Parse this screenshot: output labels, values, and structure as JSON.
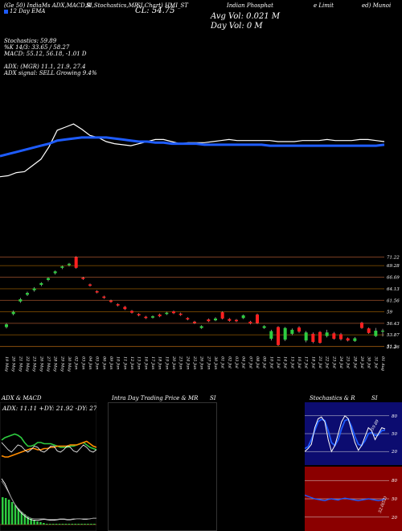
{
  "header": {
    "line1": [
      "(Ge 50) IndiaMs ADX,MACD,B",
      "SI,Stochastics,MR",
      "SI Chart) HMI_ST",
      "Indian Phosphat",
      "e Limit",
      "ed) Munoi"
    ],
    "ema_line": "12  Day  EMA",
    "cl_label": "CL: 54.75",
    "avg_vol": "Avg Vol: 0.021 M",
    "day_vol": "Day Vol: 0   M",
    "stochastics": "Stochastics: 59.89",
    "stochastics2": "%K 14/3: 33.65 / 58.27",
    "macd": "MACD: 55.12, 56.18, -1.01 D",
    "adx": "ADX:                    (MGR) 11.1, 21.9, 27.4",
    "adx_signal": "ADX  signal: SELL Growing 9.4%"
  },
  "chart_data": [
    {
      "type": "line",
      "name": "moving-averages",
      "series": [
        {
          "name": "price",
          "color": "#ffffff",
          "values": [
            62,
            61,
            58,
            57,
            51,
            45,
            33,
            17,
            14,
            11,
            16,
            22,
            24,
            28,
            30,
            31,
            32,
            30,
            28,
            26,
            26,
            28,
            30,
            29,
            29,
            29,
            28,
            27,
            26,
            27,
            27,
            27,
            27,
            27,
            28,
            28,
            28,
            27,
            27,
            27,
            26,
            27,
            27,
            27,
            26,
            26,
            27,
            28
          ]
        },
        {
          "name": "ema",
          "color": "#1e5cff",
          "values": [
            42,
            40,
            38,
            36,
            34,
            32,
            30,
            27,
            26,
            25,
            24,
            24,
            24,
            24,
            25,
            26,
            27,
            28,
            28,
            29,
            29,
            30,
            30,
            30,
            30,
            31,
            31,
            31,
            31,
            31,
            31,
            31,
            31,
            32,
            32,
            32,
            32,
            32,
            32,
            32,
            32,
            32,
            32,
            32,
            32,
            32,
            32,
            31
          ]
        }
      ]
    },
    {
      "type": "candlestick",
      "name": "price-candles",
      "y_ticks": [
        "71.22",
        "69.28",
        "66.69",
        "64.13",
        "61.56",
        "59",
        "56.43",
        "53.87",
        "51.3",
        "51.26"
      ],
      "y_tick_values": [
        71.22,
        69.28,
        66.69,
        64.13,
        61.56,
        59,
        56.43,
        53.87,
        51.3,
        51.26
      ],
      "ylim": [
        50.5,
        72
      ],
      "x_labels": [
        "19 May",
        "20 May",
        "21 May",
        "22 May",
        "23 May",
        "26 May",
        "27 May",
        "28 May",
        "29 May",
        "30 May",
        "02 Jun",
        "03 Jun",
        "04 Jun",
        "05 Jun",
        "06 Jun",
        "09 Jun",
        "10 Jun",
        "11 Jun",
        "12 Jun",
        "13 Jun",
        "16 Jun",
        "17 Jun",
        "18 Jun",
        "19 Jun",
        "20 Jun",
        "23 Jun",
        "24 Jun",
        "25 Jun",
        "26 Jun",
        "27 Jun",
        "30 Jun",
        "01 Jul",
        "02 Jul",
        "03 Jul",
        "04 Jul",
        "07 Jul",
        "08 Jul",
        "09 Jul",
        "10 Jul",
        "11 Jul",
        "14 Jul",
        "15 Jul",
        "16 Jul",
        "17 Jul",
        "18 Jul",
        "21 Jul",
        "22 Jul",
        "23 Jul",
        "24 Jul",
        "25 Jul",
        "28 Jul",
        "29 Jul",
        "30 Jul",
        "31 Jul",
        "01 Aug"
      ],
      "candles": [
        {
          "o": 55.6,
          "c": 56.2,
          "h": 56.5,
          "l": 55.3
        },
        {
          "o": 58.5,
          "c": 59.0,
          "h": 59.3,
          "l": 58.2
        },
        {
          "o": 61.3,
          "c": 61.8,
          "h": 62.1,
          "l": 61.0
        },
        {
          "o": 62.8,
          "c": 63.2,
          "h": 63.5,
          "l": 62.5
        },
        {
          "o": 63.8,
          "c": 64.2,
          "h": 64.5,
          "l": 63.5
        },
        {
          "o": 65.0,
          "c": 65.4,
          "h": 65.6,
          "l": 64.7
        },
        {
          "o": 66.1,
          "c": 66.5,
          "h": 66.7,
          "l": 65.8
        },
        {
          "o": 67.6,
          "c": 68.0,
          "h": 68.2,
          "l": 67.3
        },
        {
          "o": 68.8,
          "c": 69.1,
          "h": 69.3,
          "l": 68.5
        },
        {
          "o": 69.4,
          "c": 69.7,
          "h": 69.9,
          "l": 69.1
        },
        {
          "o": 71.2,
          "c": 68.8,
          "h": 71.4,
          "l": 68.6
        },
        {
          "o": 66.6,
          "c": 66.3,
          "h": 66.8,
          "l": 66.1
        },
        {
          "o": 65.1,
          "c": 64.8,
          "h": 65.3,
          "l": 64.6
        },
        {
          "o": 63.6,
          "c": 63.3,
          "h": 63.8,
          "l": 63.1
        },
        {
          "o": 62.4,
          "c": 62.1,
          "h": 62.6,
          "l": 61.9
        },
        {
          "o": 61.5,
          "c": 61.2,
          "h": 61.7,
          "l": 61.0
        },
        {
          "o": 60.7,
          "c": 60.4,
          "h": 60.9,
          "l": 60.2
        },
        {
          "o": 60.1,
          "c": 59.6,
          "h": 60.3,
          "l": 59.4
        },
        {
          "o": 59.2,
          "c": 58.8,
          "h": 59.4,
          "l": 58.6
        },
        {
          "o": 58.5,
          "c": 58.2,
          "h": 58.7,
          "l": 58.0
        },
        {
          "o": 57.9,
          "c": 57.6,
          "h": 58.1,
          "l": 57.4
        },
        {
          "o": 57.7,
          "c": 58.0,
          "h": 58.2,
          "l": 57.5
        },
        {
          "o": 58.4,
          "c": 58.0,
          "h": 58.6,
          "l": 57.8
        },
        {
          "o": 58.5,
          "c": 58.8,
          "h": 59.0,
          "l": 58.3
        },
        {
          "o": 59.1,
          "c": 58.7,
          "h": 59.3,
          "l": 58.5
        },
        {
          "o": 58.6,
          "c": 58.3,
          "h": 58.8,
          "l": 58.1
        },
        {
          "o": 57.6,
          "c": 57.3,
          "h": 57.8,
          "l": 57.1
        },
        {
          "o": 56.8,
          "c": 56.5,
          "h": 57.0,
          "l": 56.3
        },
        {
          "o": 55.4,
          "c": 55.8,
          "h": 56.0,
          "l": 55.2
        },
        {
          "o": 57.3,
          "c": 56.9,
          "h": 57.5,
          "l": 56.7
        },
        {
          "o": 57.1,
          "c": 57.5,
          "h": 57.8,
          "l": 56.9
        },
        {
          "o": 58.9,
          "c": 57.5,
          "h": 59.1,
          "l": 57.3
        },
        {
          "o": 57.4,
          "c": 57.0,
          "h": 57.6,
          "l": 56.8
        },
        {
          "o": 57.2,
          "c": 56.9,
          "h": 57.4,
          "l": 56.7
        },
        {
          "o": 57.6,
          "c": 58.2,
          "h": 58.4,
          "l": 57.4
        },
        {
          "o": 56.8,
          "c": 56.4,
          "h": 57.0,
          "l": 56.2
        },
        {
          "o": 58.4,
          "c": 56.5,
          "h": 58.6,
          "l": 56.3
        },
        {
          "o": 55.4,
          "c": 55.8,
          "h": 56.0,
          "l": 55.2
        },
        {
          "o": 53.0,
          "c": 54.7,
          "h": 55.0,
          "l": 52.6
        },
        {
          "o": 55.6,
          "c": 51.6,
          "h": 55.8,
          "l": 51.4
        },
        {
          "o": 52.8,
          "c": 55.4,
          "h": 55.6,
          "l": 52.5
        },
        {
          "o": 54.1,
          "c": 55.0,
          "h": 55.3,
          "l": 53.8
        },
        {
          "o": 55.5,
          "c": 54.6,
          "h": 55.8,
          "l": 54.3
        },
        {
          "o": 52.6,
          "c": 54.4,
          "h": 54.7,
          "l": 52.2
        },
        {
          "o": 54.1,
          "c": 52.3,
          "h": 54.4,
          "l": 52.0
        },
        {
          "o": 54.5,
          "c": 52.1,
          "h": 54.7,
          "l": 51.9
        },
        {
          "o": 53.6,
          "c": 54.4,
          "h": 55.0,
          "l": 53.3
        },
        {
          "o": 54.2,
          "c": 53.0,
          "h": 54.5,
          "l": 52.8
        },
        {
          "o": 54.0,
          "c": 52.9,
          "h": 54.3,
          "l": 52.6
        },
        {
          "o": 53.1,
          "c": 52.6,
          "h": 53.3,
          "l": 52.4
        },
        {
          "o": 52.5,
          "c": 53.1,
          "h": 53.4,
          "l": 52.3
        },
        {
          "o": 56.6,
          "c": 55.4,
          "h": 56.8,
          "l": 55.2
        },
        {
          "o": 55.3,
          "c": 54.3,
          "h": 55.5,
          "l": 54.1
        },
        {
          "o": 53.6,
          "c": 54.8,
          "h": 55.4,
          "l": 53.4
        },
        {
          "o": 54.6,
          "c": 54.8,
          "h": 55.2,
          "l": 53.5
        }
      ],
      "up_color": "#2ecc40",
      "down_color": "#ff2020"
    },
    {
      "type": "line",
      "name": "adx-macd-panel",
      "title": "ADX  & MACD",
      "adx_text": "ADX: 11.11  +DY: 21.92  -DY: 27.4",
      "series": [
        {
          "name": "plus-dy",
          "color": "#2ecc40",
          "values": [
            32,
            34,
            35,
            36,
            37,
            36,
            34,
            30,
            27,
            27,
            28,
            30,
            30,
            29,
            29,
            29,
            28,
            27,
            26,
            26,
            26,
            27,
            27,
            28,
            29,
            30,
            28,
            26,
            25,
            24
          ]
        },
        {
          "name": "minus-dy",
          "color": "#ff8c00",
          "values": [
            19,
            18,
            18,
            19,
            20,
            21,
            22,
            23,
            24,
            25,
            25,
            24,
            24,
            25,
            25,
            26,
            26,
            27,
            27,
            27,
            27,
            28,
            28,
            28,
            29,
            30,
            31,
            29,
            27,
            26
          ]
        },
        {
          "name": "adx",
          "color": "#ffffff",
          "values": [
            30,
            27,
            24,
            22,
            25,
            28,
            27,
            24,
            22,
            24,
            27,
            26,
            23,
            22,
            24,
            27,
            27,
            23,
            22,
            24,
            27,
            26,
            23,
            22,
            25,
            28,
            26,
            23,
            22,
            24
          ]
        }
      ],
      "macd_hist": [
        34,
        33,
        31,
        28,
        24,
        20,
        16,
        13,
        10,
        8,
        6,
        4,
        3,
        2,
        1,
        1,
        1,
        1,
        1,
        1,
        1,
        1,
        1,
        1,
        1,
        1,
        1,
        1,
        1,
        1
      ],
      "macd_line": [
        95,
        85,
        70,
        55,
        42,
        32,
        24,
        18,
        13,
        10,
        9,
        9,
        10,
        11,
        10,
        9,
        9,
        10,
        11,
        11,
        10,
        10,
        11,
        12,
        12,
        11,
        11,
        12,
        13,
        13
      ],
      "signal_line": [
        90,
        80,
        68,
        55,
        43,
        34,
        27,
        21,
        16,
        13,
        12,
        12,
        12,
        12,
        11,
        11,
        11,
        11,
        12,
        12,
        11,
        11,
        12,
        12,
        12,
        12,
        12,
        12,
        13,
        13
      ]
    },
    {
      "type": "other",
      "name": "intraday-panel",
      "title": "Intra  Day  Trading Price  & MR",
      "title2": "SI"
    },
    {
      "type": "line",
      "name": "stochastics-panel",
      "title": "Stochastics & R",
      "title2": "SI",
      "y_ticks": [
        "80",
        "50",
        "20"
      ],
      "label": "59.89",
      "k_values": [
        20,
        25,
        32,
        60,
        75,
        78,
        70,
        40,
        20,
        30,
        50,
        70,
        80,
        75,
        55,
        35,
        22,
        30,
        45,
        60,
        55,
        40,
        50,
        60,
        58
      ],
      "d_values": [
        25,
        28,
        40,
        55,
        70,
        74,
        72,
        55,
        35,
        30,
        40,
        58,
        72,
        74,
        62,
        45,
        32,
        30,
        38,
        50,
        52,
        47,
        48,
        55,
        56
      ],
      "rsi_ticks": [
        "80",
        "50",
        "20"
      ],
      "rsi_label": "52.0(52)",
      "rsi_values": [
        56,
        54,
        52,
        50,
        49,
        48,
        47,
        49,
        50,
        49,
        48,
        50,
        51,
        50,
        49,
        48,
        47,
        48,
        49,
        50,
        49,
        48,
        47,
        48,
        50
      ]
    }
  ]
}
